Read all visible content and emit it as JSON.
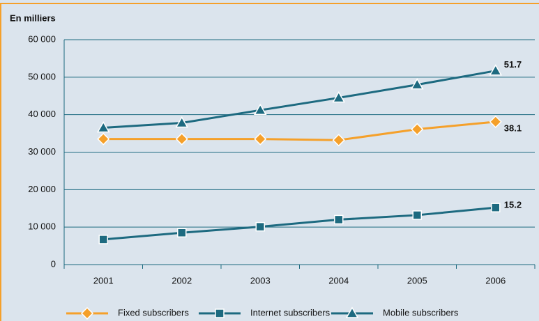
{
  "chart_data": {
    "type": "line",
    "y_label": "En milliers",
    "categories": [
      "2001",
      "2002",
      "2003",
      "2004",
      "2005",
      "2006"
    ],
    "series": [
      {
        "name": "Fixed subscribers",
        "color": "#f5a02a",
        "marker": "diamond",
        "values": [
          33500,
          33500,
          33500,
          33200,
          36100,
          38100
        ],
        "value_labels": [
          null,
          null,
          null,
          null,
          null,
          "38.1"
        ]
      },
      {
        "name": "Internet subscribers",
        "color": "#1d6a80",
        "marker": "square",
        "values": [
          6700,
          8500,
          10100,
          12000,
          13200,
          15200
        ],
        "value_labels": [
          null,
          null,
          null,
          null,
          null,
          "15.2"
        ]
      },
      {
        "name": "Mobile subscribers",
        "color": "#1d6a80",
        "marker": "triangle",
        "values": [
          36500,
          37800,
          41200,
          44500,
          48000,
          51700
        ],
        "value_labels": [
          null,
          null,
          null,
          null,
          null,
          "51.7"
        ]
      }
    ],
    "ylim": [
      0,
      60000
    ],
    "yticks": [
      0,
      {
        "value": 10000,
        "label": "10 000"
      },
      {
        "value": 20000,
        "label": "20 000"
      },
      {
        "value": 30000,
        "label": "30 000"
      },
      {
        "value": 40000,
        "label": "40 000"
      },
      {
        "value": 50000,
        "label": "50 000"
      },
      {
        "value": 60000,
        "label": "60 000"
      }
    ],
    "grid": true
  }
}
